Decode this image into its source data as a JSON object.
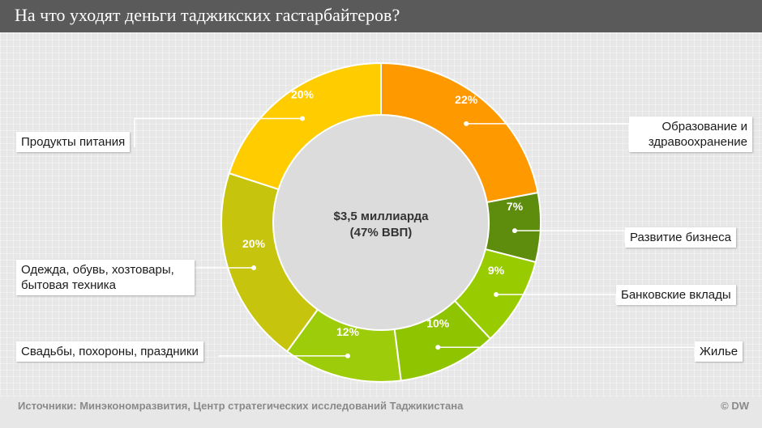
{
  "title": "На что уходят деньги таджикских гастарбайтеров?",
  "center_label": {
    "line1": "$3,5 миллиарда",
    "line2": "(47% ВВП)"
  },
  "source": "Источники: Минэкономразвития, Центр стратегических исследований Таджикистана",
  "copyright": "© DW",
  "chart_data": {
    "type": "pie",
    "donut": true,
    "slices": [
      {
        "label": "Образование и здравоохранение",
        "value": 22,
        "value_label": "22%",
        "color": "#ff9900"
      },
      {
        "label": "Развитие бизнеса",
        "value": 7,
        "value_label": "7%",
        "color": "#5e8c0c"
      },
      {
        "label": "Банковские вклады",
        "value": 9,
        "value_label": "9%",
        "color": "#99cc00"
      },
      {
        "label": "Жилье",
        "value": 10,
        "value_label": "10%",
        "color": "#8fc400"
      },
      {
        "label": "Свадьбы, похороны, праздники",
        "value": 12,
        "value_label": "12%",
        "color": "#9dcc0a"
      },
      {
        "label": "Одежда, обувь, хозтовары, бытовая техника",
        "value": 20,
        "value_label": "20%",
        "color": "#c6c40c"
      },
      {
        "label": "Продукты питания",
        "value": 20,
        "value_label": "20%",
        "color": "#ffcc00"
      }
    ]
  }
}
